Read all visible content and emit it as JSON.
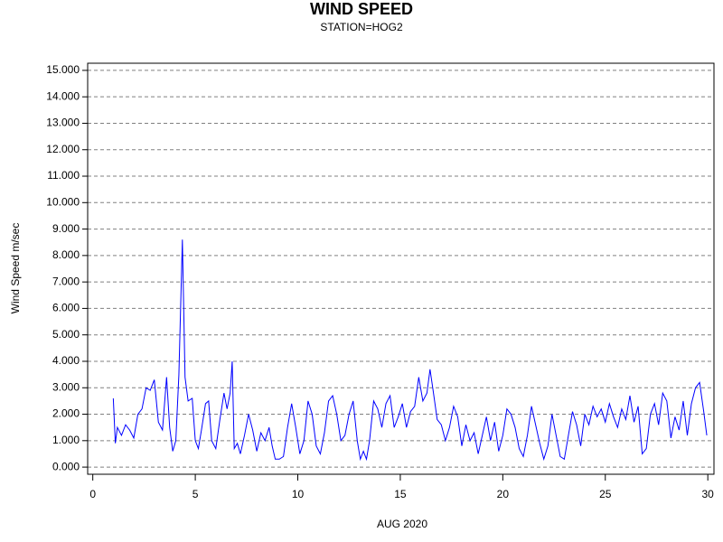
{
  "chart_data": {
    "type": "line",
    "title": "WIND SPEED",
    "subtitle": "STATION=HOG2",
    "xlabel": "AUG 2020",
    "ylabel": "Wind Speed m/sec",
    "color": "#0000ff",
    "grid": true,
    "xlim": [
      -0.25,
      30.3
    ],
    "ylim": [
      -0.27,
      15.27
    ],
    "xticks": [
      0,
      5,
      10,
      15,
      20,
      25,
      30
    ],
    "yticks": [
      {
        "value": 0,
        "label": "0.000"
      },
      {
        "value": 1,
        "label": "1.000"
      },
      {
        "value": 2,
        "label": "2.000"
      },
      {
        "value": 3,
        "label": "3.000"
      },
      {
        "value": 4,
        "label": "4.000"
      },
      {
        "value": 5,
        "label": "5.000"
      },
      {
        "value": 6,
        "label": "6.000"
      },
      {
        "value": 7,
        "label": "7.000"
      },
      {
        "value": 8,
        "label": "8.000"
      },
      {
        "value": 9,
        "label": "9.000"
      },
      {
        "value": 10,
        "label": "10.000"
      },
      {
        "value": 11,
        "label": "11.000"
      },
      {
        "value": 12,
        "label": "12.000"
      },
      {
        "value": 13,
        "label": "13.000"
      },
      {
        "value": 14,
        "label": "14.000"
      },
      {
        "value": 15,
        "label": "15.000"
      }
    ],
    "x": [
      1.0,
      1.1,
      1.2,
      1.4,
      1.6,
      1.8,
      2.0,
      2.2,
      2.4,
      2.6,
      2.8,
      3.0,
      3.2,
      3.4,
      3.6,
      3.75,
      3.9,
      4.05,
      4.2,
      4.37,
      4.5,
      4.65,
      4.85,
      5.0,
      5.15,
      5.3,
      5.5,
      5.65,
      5.8,
      6.0,
      6.2,
      6.4,
      6.55,
      6.7,
      6.8,
      6.9,
      7.05,
      7.2,
      7.4,
      7.6,
      7.8,
      8.0,
      8.2,
      8.4,
      8.6,
      8.75,
      8.9,
      9.1,
      9.3,
      9.5,
      9.7,
      9.9,
      10.1,
      10.3,
      10.5,
      10.7,
      10.9,
      11.1,
      11.3,
      11.5,
      11.7,
      11.9,
      12.1,
      12.3,
      12.5,
      12.7,
      12.9,
      13.05,
      13.2,
      13.35,
      13.5,
      13.7,
      13.9,
      14.1,
      14.3,
      14.5,
      14.7,
      14.9,
      15.1,
      15.3,
      15.5,
      15.7,
      15.9,
      16.1,
      16.3,
      16.45,
      16.6,
      16.8,
      17.0,
      17.2,
      17.4,
      17.6,
      17.8,
      18.0,
      18.2,
      18.4,
      18.6,
      18.8,
      19.0,
      19.2,
      19.4,
      19.6,
      19.8,
      20.0,
      20.2,
      20.4,
      20.6,
      20.8,
      21.0,
      21.2,
      21.4,
      21.6,
      21.8,
      22.0,
      22.2,
      22.4,
      22.6,
      22.8,
      23.0,
      23.2,
      23.4,
      23.6,
      23.8,
      24.0,
      24.2,
      24.4,
      24.6,
      24.8,
      25.0,
      25.2,
      25.4,
      25.6,
      25.8,
      26.0,
      26.2,
      26.4,
      26.6,
      26.8,
      27.0,
      27.2,
      27.4,
      27.6,
      27.8,
      28.0,
      28.2,
      28.4,
      28.6,
      28.8,
      29.0,
      29.2,
      29.4,
      29.6,
      29.8,
      29.95
    ],
    "values": [
      2.6,
      0.9,
      1.5,
      1.2,
      1.6,
      1.4,
      1.1,
      2.0,
      2.2,
      3.0,
      2.9,
      3.3,
      1.7,
      1.4,
      3.4,
      1.5,
      0.6,
      1.0,
      3.5,
      8.6,
      3.4,
      2.5,
      2.6,
      1.0,
      0.7,
      1.4,
      2.4,
      2.5,
      1.0,
      0.7,
      1.8,
      2.8,
      2.2,
      2.8,
      4.0,
      0.7,
      0.9,
      0.5,
      1.2,
      2.0,
      1.4,
      0.6,
      1.3,
      1.0,
      1.5,
      0.8,
      0.3,
      0.3,
      0.4,
      1.5,
      2.4,
      1.5,
      0.5,
      1.0,
      2.5,
      2.0,
      0.8,
      0.5,
      1.3,
      2.5,
      2.7,
      2.0,
      1.0,
      1.2,
      2.0,
      2.5,
      1.0,
      0.3,
      0.6,
      0.3,
      1.0,
      2.5,
      2.2,
      1.5,
      2.4,
      2.7,
      1.5,
      1.9,
      2.4,
      1.5,
      2.1,
      2.3,
      3.4,
      2.5,
      2.8,
      3.7,
      2.9,
      1.8,
      1.6,
      1.0,
      1.5,
      2.3,
      1.9,
      0.8,
      1.6,
      1.0,
      1.3,
      0.5,
      1.2,
      1.9,
      1.0,
      1.7,
      0.6,
      1.2,
      2.2,
      2.0,
      1.5,
      0.7,
      0.4,
      1.2,
      2.3,
      1.6,
      0.9,
      0.3,
      0.8,
      2.0,
      1.2,
      0.4,
      0.3,
      1.2,
      2.1,
      1.6,
      0.8,
      2.0,
      1.6,
      2.3,
      1.9,
      2.2,
      1.7,
      2.4,
      1.9,
      1.5,
      2.2,
      1.8,
      2.7,
      1.7,
      2.3,
      0.5,
      0.7,
      2.0,
      2.4,
      1.6,
      2.8,
      2.5,
      1.1,
      1.9,
      1.4,
      2.5,
      1.2,
      2.4,
      3.0,
      3.2,
      2.1,
      1.2
    ]
  }
}
